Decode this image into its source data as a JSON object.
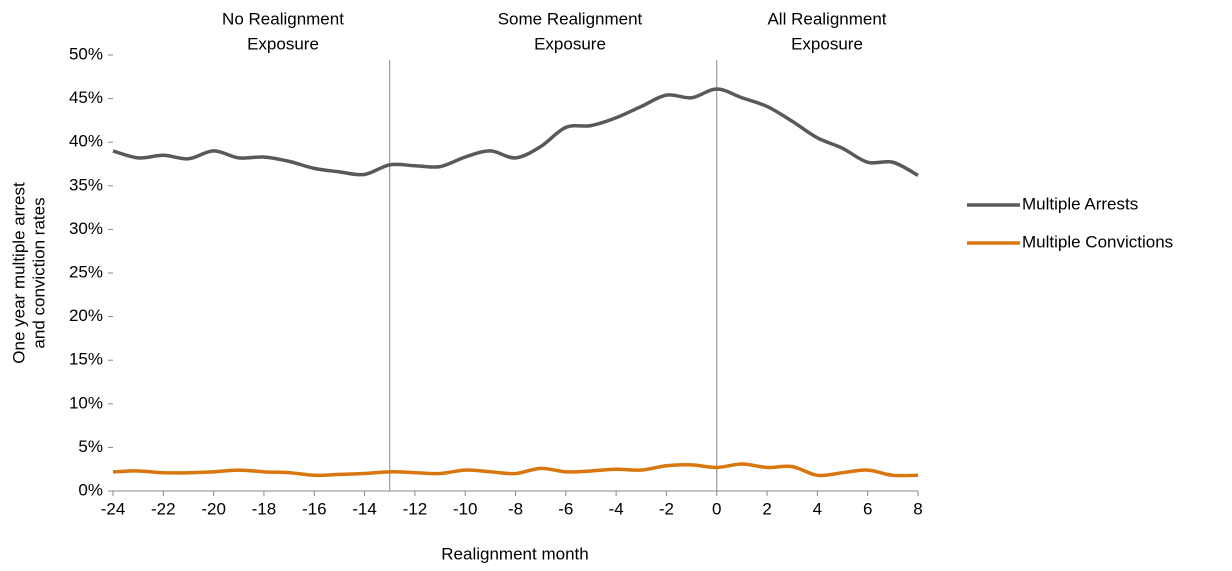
{
  "chart_data": {
    "type": "line",
    "x_label": "Realignment month",
    "y_label": [
      "One year multiple arrest",
      "and conviction rates"
    ],
    "annotations": [
      [
        "No Realignment",
        "Exposure"
      ],
      [
        "Some Realignment",
        "Exposure"
      ],
      [
        "All Realignment",
        "Exposure"
      ]
    ],
    "vlines": [
      -13,
      0
    ],
    "x": [
      -24,
      -23,
      -22,
      -21,
      -20,
      -19,
      -18,
      -17,
      -16,
      -15,
      -14,
      -13,
      -12,
      -11,
      -10,
      -9,
      -8,
      -7,
      -6,
      -5,
      -4,
      -3,
      -2,
      -1,
      0,
      1,
      2,
      3,
      4,
      5,
      6,
      7,
      8
    ],
    "series": [
      {
        "name": "Multiple Arrests",
        "color": "#595959",
        "values": [
          39.0,
          38.2,
          38.5,
          38.1,
          39.0,
          38.2,
          38.3,
          37.8,
          37.0,
          36.6,
          36.3,
          37.4,
          37.3,
          37.2,
          38.3,
          39.0,
          38.2,
          39.5,
          41.7,
          41.9,
          42.8,
          44.1,
          45.4,
          45.1,
          46.1,
          45.1,
          44.1,
          42.4,
          40.5,
          39.3,
          37.7,
          37.7,
          36.2
        ]
      },
      {
        "name": "Multiple Convictions",
        "color": "#d9770e",
        "values": [
          2.2,
          2.3,
          2.1,
          2.1,
          2.2,
          2.4,
          2.2,
          2.1,
          1.8,
          1.9,
          2.0,
          2.2,
          2.1,
          2.0,
          2.4,
          2.2,
          2.0,
          2.6,
          2.2,
          2.3,
          2.5,
          2.4,
          2.9,
          3.0,
          2.7,
          3.1,
          2.7,
          2.8,
          1.8,
          2.1,
          2.4,
          1.8,
          1.8
        ]
      }
    ],
    "xlim": [
      -24,
      8
    ],
    "xticks": [
      -24,
      -22,
      -20,
      -18,
      -16,
      -14,
      -12,
      -10,
      -8,
      -6,
      -4,
      -2,
      0,
      2,
      4,
      6,
      8
    ],
    "ylim": [
      0,
      50
    ],
    "yticks": [
      {
        "value": 0,
        "label": "0%"
      },
      {
        "value": 5,
        "label": "5%"
      },
      {
        "value": 10,
        "label": "10%"
      },
      {
        "value": 15,
        "label": "15%"
      },
      {
        "value": 20,
        "label": "20%"
      },
      {
        "value": 25,
        "label": "25%"
      },
      {
        "value": 30,
        "label": "30%"
      },
      {
        "value": 35,
        "label": "35%"
      },
      {
        "value": 40,
        "label": "40%"
      },
      {
        "value": 45,
        "label": "45%"
      },
      {
        "value": 50,
        "label": "50%"
      }
    ],
    "legend": "right"
  }
}
